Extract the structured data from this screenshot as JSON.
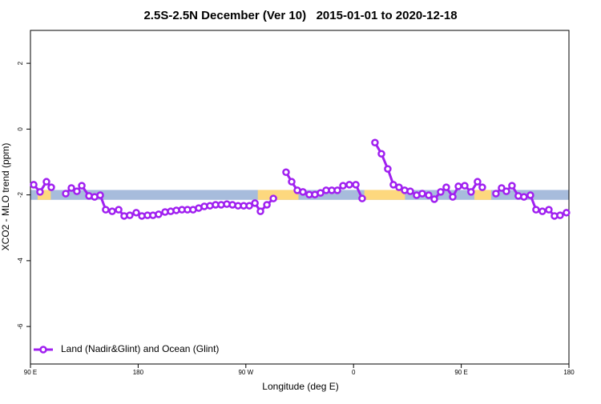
{
  "chart_data": {
    "type": "line",
    "title": "2.5S-2.5N December (Ver 10)   2015-01-01 to 2020-12-18",
    "xlabel": "Longitude (deg E)",
    "ylabel": "XCO2 - MLO trend (ppm)",
    "xlim": [
      90,
      540
    ],
    "xticks": [
      {
        "value": 90,
        "label": "90 E"
      },
      180,
      {
        "value": 270,
        "label": "90 W"
      },
      {
        "value": 360,
        "label": "0"
      },
      {
        "value": 450,
        "label": "90 E"
      },
      {
        "value": 540,
        "label": "180"
      }
    ],
    "ylim": [
      -7.14,
      3
    ],
    "yticks": [
      2,
      0,
      -2,
      -4,
      -6
    ],
    "band_range": [
      -2.15,
      -1.85
    ],
    "band_color": "#a7bcdc",
    "land_ranges": [
      [
        96,
        107
      ],
      [
        280,
        314
      ],
      [
        369,
        403
      ],
      [
        461,
        475
      ]
    ],
    "land_color": "#fdd87e",
    "legend": "bottom-left",
    "series": [
      {
        "name": "Land (Nadir&Glint) and Ocean (Glint)",
        "color": "#a020f0",
        "x": [
          92.7,
          98.0,
          103.4,
          107.4,
          null,
          119.5,
          124.2,
          128.8,
          132.9,
          138.9,
          143.6,
          148.3,
          152.9,
          158.3,
          163.7,
          168.3,
          173.0,
          178.4,
          183.1,
          187.8,
          192.4,
          197.1,
          202.5,
          207.2,
          211.9,
          216.6,
          221.2,
          225.9,
          230.6,
          235.3,
          240.0,
          244.7,
          249.4,
          254.1,
          258.8,
          263.5,
          268.2,
          272.9,
          277.6,
          282.2,
          287.6,
          293.0,
          null,
          303.6,
          308.3,
          313.0,
          317.7,
          323.0,
          327.7,
          332.4,
          337.1,
          341.8,
          346.5,
          351.2,
          356.5,
          361.9,
          367.2,
          null,
          377.9,
          383.3,
          388.6,
          393.3,
          398.0,
          402.7,
          407.4,
          412.7,
          417.4,
          422.8,
          427.5,
          432.8,
          437.5,
          442.9,
          447.6,
          452.9,
          458.2,
          463.6,
          467.6,
          null,
          479.0,
          483.7,
          487.7,
          492.4,
          497.7,
          502.4,
          507.8,
          512.5,
          517.8,
          523.2,
          527.9,
          532.6,
          537.9
        ],
        "values": [
          -1.69,
          -1.91,
          -1.6,
          -1.77,
          null,
          -1.96,
          -1.79,
          -1.89,
          -1.72,
          -2.03,
          -2.06,
          -2.01,
          -2.45,
          -2.5,
          -2.45,
          -2.64,
          -2.62,
          -2.54,
          -2.64,
          -2.62,
          -2.62,
          -2.59,
          -2.52,
          -2.5,
          -2.47,
          -2.45,
          -2.45,
          -2.45,
          -2.4,
          -2.35,
          -2.33,
          -2.3,
          -2.3,
          -2.28,
          -2.3,
          -2.33,
          -2.33,
          -2.33,
          -2.25,
          -2.5,
          -2.3,
          -2.11,
          null,
          -1.31,
          -1.6,
          -1.86,
          -1.91,
          -1.99,
          -1.99,
          -1.94,
          -1.86,
          -1.86,
          -1.86,
          -1.72,
          -1.69,
          -1.69,
          -2.11,
          null,
          -0.41,
          -0.75,
          -1.21,
          -1.69,
          -1.77,
          -1.86,
          -1.89,
          -2.01,
          -1.96,
          -2.01,
          -2.13,
          -1.91,
          -1.77,
          -2.06,
          -1.74,
          -1.72,
          -1.91,
          -1.6,
          -1.77,
          null,
          -1.96,
          -1.79,
          -1.89,
          -1.72,
          -2.03,
          -2.06,
          -2.01,
          -2.45,
          -2.5,
          -2.45,
          -2.64,
          -2.62,
          -2.54
        ]
      }
    ]
  }
}
